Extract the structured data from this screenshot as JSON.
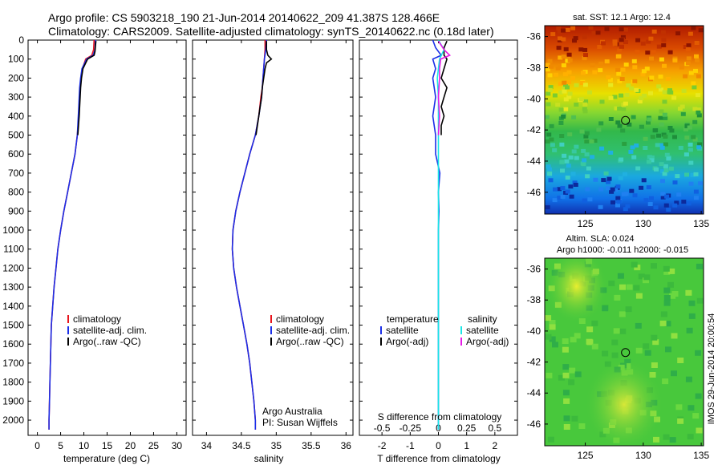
{
  "header": {
    "line1": "Argo profile: CS 5903218_190 21-Jun-2014 20140622_209 41.387S 128.466E",
    "line2": "Climatology: CARS2009. Satellite-adjusted climatology: synTS_20140622.nc (0.18d later)"
  },
  "colors": {
    "climatology": "#e8141c",
    "satellite": "#1a2ee8",
    "argo": "#000000",
    "sal_satellite": "#19e6e6",
    "sal_argo": "#e619e6"
  },
  "credit": {
    "line1": "Argo Australia",
    "line2": "PI: Susan Wijffels"
  },
  "side_stamp": "IMOS 29-Jun-2014 20:00:54",
  "chart_data": [
    {
      "id": "temperature",
      "type": "line",
      "xlabel": "temperature (deg C)",
      "xlim": [
        -2,
        32
      ],
      "ylim": [
        2080,
        0
      ],
      "x_ticks": [
        "0",
        "5",
        "10",
        "15",
        "20",
        "25",
        "30"
      ],
      "y_ticks": [
        "0",
        "100",
        "200",
        "300",
        "400",
        "500",
        "600",
        "700",
        "800",
        "900",
        "1000",
        "1100",
        "1200",
        "1300",
        "1400",
        "1500",
        "1600",
        "1700",
        "1800",
        "1900",
        "2000"
      ],
      "legend": [
        "climatology",
        "satellite-adj. clim.",
        "Argo(..raw -QC)"
      ],
      "series": [
        {
          "name": "climatology",
          "depth": [
            0,
            50,
            80,
            100,
            150,
            200,
            250,
            300,
            350,
            400,
            500,
            600,
            700,
            800,
            900,
            1000,
            1100,
            1200,
            1300,
            1400,
            1500,
            1600,
            1700,
            1800,
            1900,
            2000,
            2050
          ],
          "values": [
            12.2,
            12.1,
            11.7,
            10.4,
            9.7,
            9.4,
            9.2,
            9.1,
            9.0,
            8.9,
            8.6,
            8.1,
            7.3,
            6.5,
            5.7,
            5.0,
            4.4,
            4.0,
            3.6,
            3.3,
            3.0,
            2.9,
            2.8,
            2.7,
            2.6,
            2.5,
            2.5
          ]
        },
        {
          "name": "satellite-adj. clim.",
          "depth": [
            0,
            50,
            80,
            100,
            150,
            200,
            250,
            300,
            350,
            400,
            500,
            600,
            700,
            800,
            900,
            1000,
            1100,
            1200,
            1300,
            1400,
            1500,
            1600,
            1700,
            1800,
            1900,
            2000,
            2050
          ],
          "values": [
            12.5,
            12.4,
            12.0,
            10.6,
            9.6,
            9.3,
            9.1,
            9.0,
            8.9,
            8.8,
            8.6,
            8.1,
            7.3,
            6.5,
            5.7,
            5.0,
            4.4,
            4.0,
            3.6,
            3.3,
            3.0,
            2.9,
            2.8,
            2.7,
            2.6,
            2.5,
            2.5
          ]
        },
        {
          "name": "Argo(..raw -QC)",
          "depth": [
            5,
            30,
            60,
            80,
            100,
            150,
            200,
            250,
            300,
            350,
            400,
            500
          ],
          "values": [
            12.6,
            12.5,
            12.4,
            12.2,
            10.8,
            9.8,
            9.5,
            9.3,
            9.2,
            9.1,
            9.0,
            8.7
          ]
        }
      ]
    },
    {
      "id": "salinity",
      "type": "line",
      "xlabel": "salinity",
      "xlim": [
        33.8,
        36.1
      ],
      "ylim": [
        2080,
        0
      ],
      "x_ticks": [
        "34",
        "34.5",
        "35",
        "35.5",
        "36"
      ],
      "legend": [
        "climatology",
        "satellite-adj. clim.",
        "Argo(..raw -QC)"
      ],
      "series": [
        {
          "name": "climatology",
          "depth": [
            0,
            50,
            100,
            150,
            200,
            250,
            300,
            400,
            500,
            600,
            700,
            800,
            900,
            1000,
            1100,
            1200,
            1300,
            1400,
            1500,
            1600,
            1700,
            1800,
            1900,
            2000,
            2050
          ],
          "values": [
            34.84,
            34.84,
            34.83,
            34.82,
            34.81,
            34.8,
            34.78,
            34.75,
            34.7,
            34.62,
            34.55,
            34.48,
            34.42,
            34.38,
            34.37,
            34.39,
            34.43,
            34.48,
            34.53,
            34.58,
            34.62,
            34.65,
            34.68,
            34.7,
            34.7
          ]
        },
        {
          "name": "satellite-adj. clim.",
          "depth": [
            0,
            50,
            100,
            150,
            200,
            250,
            300,
            400,
            500,
            600,
            700,
            800,
            900,
            1000,
            1100,
            1200,
            1300,
            1400,
            1500,
            1600,
            1700,
            1800,
            1900,
            2000,
            2050
          ],
          "values": [
            34.86,
            34.85,
            34.83,
            34.82,
            34.81,
            34.8,
            34.79,
            34.75,
            34.7,
            34.62,
            34.55,
            34.48,
            34.42,
            34.38,
            34.37,
            34.39,
            34.43,
            34.48,
            34.53,
            34.58,
            34.62,
            34.65,
            34.68,
            34.7,
            34.7
          ]
        },
        {
          "name": "Argo(..raw -QC)",
          "depth": [
            5,
            50,
            80,
            100,
            120,
            150,
            200,
            250,
            300,
            350,
            400,
            500
          ],
          "values": [
            34.86,
            34.86,
            34.88,
            34.93,
            34.86,
            34.84,
            34.82,
            34.8,
            34.79,
            34.77,
            34.75,
            34.71
          ]
        }
      ]
    },
    {
      "id": "difference",
      "type": "line",
      "xlabel": "T difference from climatology",
      "top_xlabel": "S difference from climatology",
      "xlim": [
        -2.8,
        2.8
      ],
      "top_xlim": [
        -0.7,
        0.7
      ],
      "ylim": [
        2080,
        0
      ],
      "x_ticks": [
        "-2",
        "-1",
        "0",
        "1",
        "2"
      ],
      "top_x_ticks": [
        "-0.5",
        "-0.25",
        "0",
        "0.25",
        "0.5"
      ],
      "legend_temperature": [
        "temperature",
        "satellite",
        "Argo(-adj)"
      ],
      "legend_salinity": [
        "salinity",
        "satellite",
        "Argo(-adj)"
      ],
      "series": [
        {
          "name": "temperature satellite",
          "depth": [
            0,
            40,
            80,
            100,
            150,
            200,
            300,
            400,
            500,
            600,
            700,
            800,
            900,
            1000,
            1500,
            2000,
            2050
          ],
          "values": [
            -0.2,
            -0.1,
            0.1,
            -0.2,
            -0.1,
            -0.2,
            -0.1,
            -0.2,
            -0.1,
            -0.1,
            0.05,
            0.0,
            0.02,
            0.0,
            0.0,
            0.0,
            0.0
          ]
        },
        {
          "name": "temperature Argo(-adj)",
          "depth": [
            5,
            40,
            80,
            100,
            150,
            200,
            250,
            300,
            350,
            400,
            450,
            500
          ],
          "values": [
            0.3,
            0.2,
            0.2,
            0.3,
            0.2,
            0.1,
            0.3,
            0.2,
            0.1,
            0.2,
            0.1,
            0.1
          ]
        },
        {
          "name": "salinity satellite",
          "depth": [
            0,
            50,
            100,
            150,
            200,
            300,
            400,
            500,
            600,
            700,
            800,
            900,
            1000,
            1500,
            2000,
            2050
          ],
          "values": [
            0.0,
            0.05,
            0.01,
            0.0,
            -0.01,
            0.0,
            0.0,
            0.0,
            0.0,
            0.0,
            0.0,
            0.0,
            0.0,
            0.0,
            0.0,
            0.0
          ]
        },
        {
          "name": "salinity Argo(-adj)",
          "depth": [
            5,
            50,
            80,
            100,
            150,
            200,
            300,
            400,
            500
          ],
          "values": [
            0.0,
            0.05,
            0.1,
            0.02,
            0.01,
            0.01,
            0.0,
            0.01,
            0.0
          ]
        }
      ]
    },
    {
      "id": "sst_map",
      "type": "heatmap",
      "title": "sat. SST: 12.1  Argo: 12.4",
      "x_ticks": [
        "125",
        "130",
        "135"
      ],
      "y_ticks": [
        "-36",
        "-38",
        "-40",
        "-42",
        "-44",
        "-46"
      ],
      "xlim": [
        121.5,
        135.2
      ],
      "ylim": [
        -47.4,
        -35.3
      ],
      "marker": {
        "lon": 128.466,
        "lat": -41.387
      }
    },
    {
      "id": "sla_map",
      "type": "heatmap",
      "title": "Altim. SLA: 0.024",
      "subtitle": "Argo h1000: -0.011  h2000: -0.015",
      "x_ticks": [
        "125",
        "130",
        "135"
      ],
      "y_ticks": [
        "-36",
        "-38",
        "-40",
        "-42",
        "-44",
        "-46"
      ],
      "xlim": [
        121.5,
        135.2
      ],
      "ylim": [
        -47.4,
        -35.3
      ],
      "marker": {
        "lon": 128.466,
        "lat": -41.387
      }
    }
  ]
}
